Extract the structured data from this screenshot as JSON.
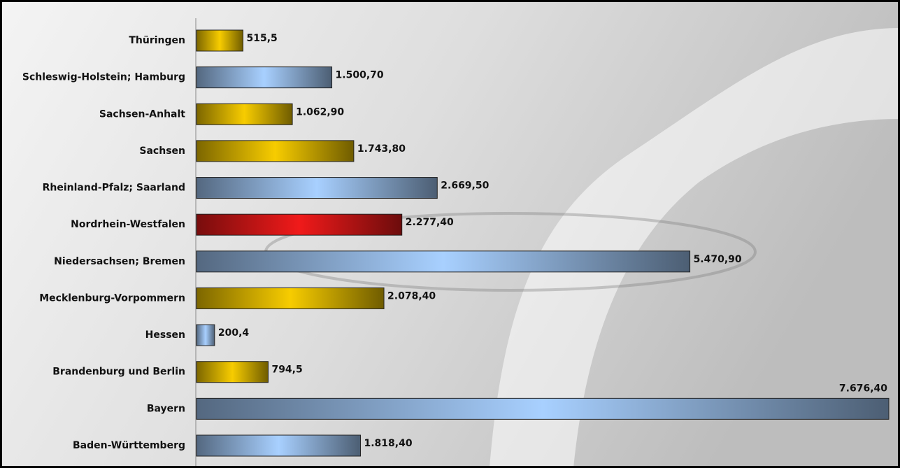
{
  "chart_data": {
    "type": "bar",
    "orientation": "horizontal",
    "categories": [
      "Thüringen",
      "Schleswig-Holstein; Hamburg",
      "Sachsen-Anhalt",
      "Sachsen",
      "Rheinland-Pfalz; Saarland",
      "Nordrhein-Westfalen",
      "Niedersachsen; Bremen",
      "Mecklenburg-Vorpommern",
      "Hessen",
      "Brandenburg und Berlin",
      "Bayern",
      "Baden-Württemberg"
    ],
    "values": [
      515.5,
      1500.7,
      1062.9,
      1743.8,
      2669.5,
      2277.4,
      5470.9,
      2078.4,
      200.4,
      794.5,
      7676.4,
      1818.4
    ],
    "value_labels": [
      "515,5",
      "1.500,70",
      "1.062,90",
      "1.743,80",
      "2.669,50",
      "2.277,40",
      "5.470,90",
      "2.078,40",
      "200,4",
      "794,5",
      "7.676,40",
      "1.818,40"
    ],
    "colors": [
      "#f7cc00",
      "#a8d0ff",
      "#f7cc00",
      "#f7cc00",
      "#a8d0ff",
      "#f01a1a",
      "#a8d0ff",
      "#f7cc00",
      "#a8d0ff",
      "#f7cc00",
      "#a8d0ff",
      "#a8d0ff"
    ]
  }
}
